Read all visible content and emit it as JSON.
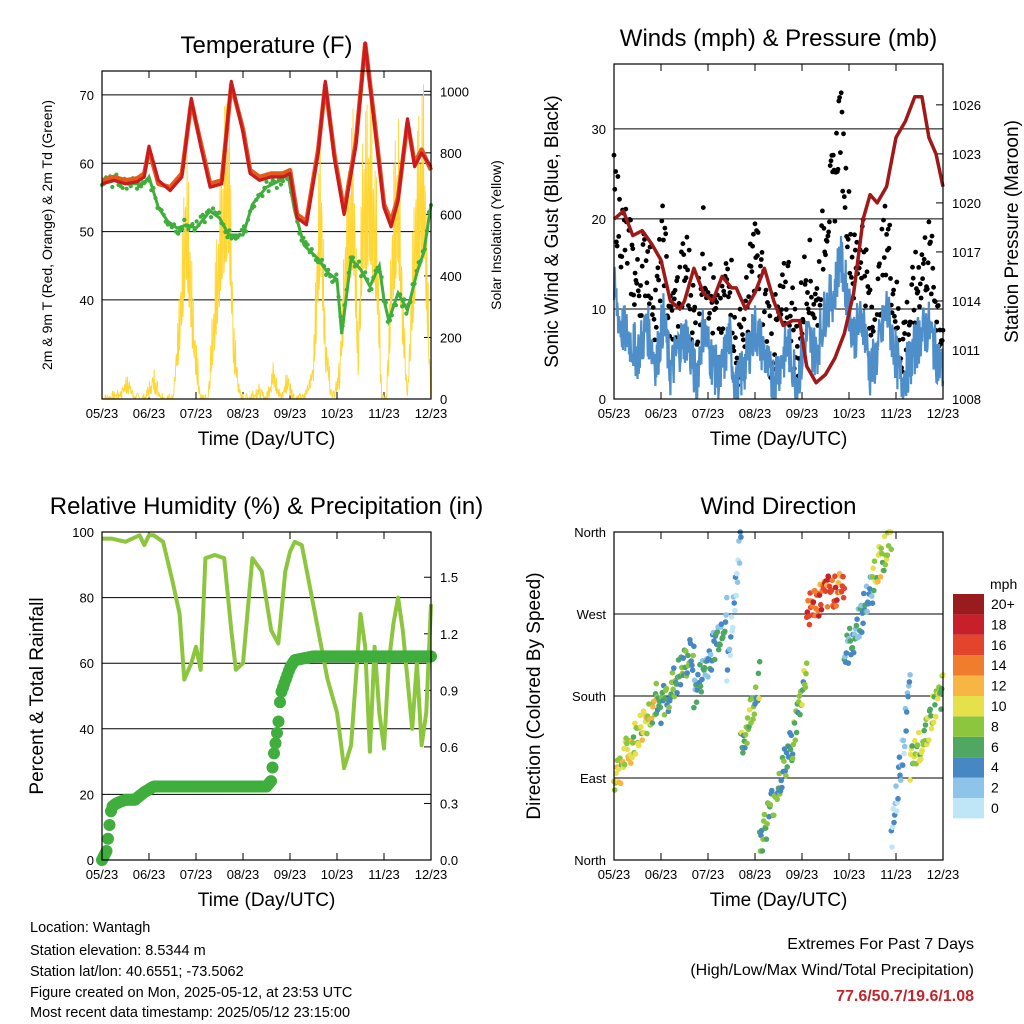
{
  "footer": {
    "location": "Location: Wantagh",
    "elevation": "Station elevation: 8.5344 m",
    "latlon": "Station lat/lon: 40.6551; -73.5062",
    "created": "Figure created on Mon, 2025-05-12, at 23:53 UTC",
    "recent": "Most recent data timestamp: 2025/05/12 23:15:00"
  },
  "extremes": {
    "title": "Extremes For Past 7 Days",
    "subtitle": "(High/Low/Max Wind/Total Precipitation)",
    "values": "77.6/50.7/19.6/1.08",
    "color": "#c0272d"
  },
  "chart_data": [
    {
      "type": "line",
      "title": "Temperature (F)",
      "xlabel": "Time (Day/UTC)",
      "ylabel": "2m & 9m T (Red, Orange) & 2m Td (Green)",
      "ylabel_right": "Solar Insolation (Yellow)",
      "x_ticks": [
        "05/23",
        "06/23",
        "07/23",
        "08/23",
        "09/23",
        "10/23",
        "11/23",
        "12/23"
      ],
      "xlim": [
        0,
        7
      ],
      "ylim": [
        25.5,
        73.5
      ],
      "y_ticks": [
        40,
        50,
        60,
        70
      ],
      "ylim_right": [
        0,
        1066
      ],
      "y_ticks_right": [
        0,
        200,
        400,
        600,
        800,
        1000
      ],
      "grid": "horizontal",
      "series": [
        {
          "color": "#e25a1c",
          "axis": "left",
          "x": [
            0,
            0.25,
            0.5,
            0.75,
            0.9,
            1.0,
            1.2,
            1.45,
            1.7,
            1.9,
            2.1,
            2.3,
            2.55,
            2.75,
            3.0,
            3.15,
            3.35,
            3.6,
            3.85,
            4.0,
            4.15,
            4.35,
            4.6,
            4.75,
            4.95,
            5.15,
            5.4,
            5.6,
            5.8,
            6.0,
            6.15,
            6.3,
            6.5,
            6.65,
            6.8,
            7.0
          ],
          "y": [
            57.5,
            58,
            57.5,
            57.8,
            58.5,
            62,
            57,
            56.5,
            58.5,
            69,
            63,
            57,
            57.5,
            71.5,
            65,
            59,
            58,
            58.5,
            58.5,
            59,
            52.5,
            51.5,
            62,
            71.5,
            61,
            53,
            63,
            77.5,
            66,
            54,
            51.5,
            55,
            66,
            60,
            62,
            59
          ]
        },
        {
          "color": "#cc1b1e",
          "axis": "left",
          "x": [
            0,
            0.25,
            0.5,
            0.75,
            0.9,
            1.0,
            1.2,
            1.45,
            1.7,
            1.9,
            2.1,
            2.3,
            2.55,
            2.75,
            3.0,
            3.15,
            3.35,
            3.6,
            3.85,
            4.0,
            4.15,
            4.35,
            4.6,
            4.75,
            4.95,
            5.15,
            5.4,
            5.6,
            5.8,
            6.0,
            6.15,
            6.3,
            6.5,
            6.65,
            6.8,
            7.0
          ],
          "y": [
            57,
            57.5,
            57,
            57.3,
            58,
            62.5,
            57.5,
            56,
            58,
            69.5,
            62.5,
            56.5,
            57,
            72,
            64.5,
            58.5,
            57.5,
            58,
            58,
            58.5,
            52,
            51,
            61.5,
            72,
            60.5,
            52.5,
            62.5,
            77.6,
            65.5,
            53.5,
            50.7,
            54.5,
            66.5,
            59.5,
            61.5,
            59.5
          ]
        },
        {
          "color": "#3fae3c",
          "axis": "left",
          "x": [
            0,
            0.3,
            0.6,
            0.9,
            1.0,
            1.2,
            1.4,
            1.6,
            1.8,
            2.0,
            2.3,
            2.5,
            2.7,
            3.0,
            3.2,
            3.5,
            3.8,
            3.95,
            4.1,
            4.3,
            4.6,
            4.8,
            5.0,
            5.1,
            5.3,
            5.5,
            5.7,
            5.9,
            6.0,
            6.1,
            6.3,
            6.5,
            6.7,
            6.85,
            7.0
          ],
          "y": [
            57,
            57.5,
            57,
            57,
            58,
            53.5,
            51.5,
            50.5,
            51,
            50.5,
            53,
            52,
            49.5,
            49.5,
            54,
            56.5,
            57.5,
            58.5,
            53,
            48,
            46,
            44,
            43,
            35,
            46,
            44.5,
            42,
            45,
            40,
            37,
            41,
            38.5,
            44,
            47,
            54
          ]
        },
        {
          "color": "#ffd633",
          "axis": "right",
          "x": [
            0,
            0.1,
            0.4,
            0.55,
            0.7,
            0.9,
            1.1,
            1.3,
            1.5,
            1.65,
            1.8,
            1.95,
            2.1,
            2.25,
            2.45,
            2.6,
            2.7,
            2.8,
            2.95,
            3.1,
            3.3,
            3.5,
            3.65,
            3.8,
            3.95,
            4.1,
            4.3,
            4.5,
            4.65,
            4.75,
            4.9,
            5.05,
            5.2,
            5.35,
            5.45,
            5.55,
            5.7,
            5.85,
            5.95,
            6.05,
            6.2,
            6.3,
            6.4,
            6.5,
            6.6,
            6.7,
            6.8,
            6.85,
            6.95,
            7.0
          ],
          "y": [
            0,
            0,
            30,
            80,
            0,
            0,
            90,
            0,
            0,
            350,
            870,
            300,
            0,
            0,
            560,
            960,
            1050,
            250,
            0,
            0,
            40,
            0,
            130,
            0,
            90,
            0,
            0,
            150,
            1000,
            250,
            0,
            110,
            700,
            1000,
            200,
            930,
            1010,
            700,
            0,
            0,
            780,
            1000,
            400,
            0,
            500,
            900,
            1000,
            1060,
            300,
            0
          ]
        }
      ]
    },
    {
      "type": "line",
      "title": "Winds (mph) & Pressure (mb)",
      "xlabel": "Time (Day/UTC)",
      "ylabel": "Sonic Wind & Gust (Blue, Black)",
      "ylabel_right": "Station Pressure (Maroon)",
      "x_ticks": [
        "05/23",
        "06/23",
        "07/23",
        "08/23",
        "09/23",
        "10/23",
        "11/23",
        "12/23"
      ],
      "xlim": [
        0,
        7
      ],
      "ylim": [
        0,
        37.2
      ],
      "y_ticks": [
        0,
        10,
        20,
        30
      ],
      "ylim_right": [
        1008,
        1028.5
      ],
      "y_ticks_right": [
        1008,
        1011,
        1014,
        1017,
        1020,
        1023,
        1026
      ],
      "grid": "horizontal",
      "series": [
        {
          "color": "#000000",
          "axis": "left",
          "x": [
            0,
            0.15,
            0.3,
            0.5,
            0.7,
            0.9,
            1.05,
            1.2,
            1.4,
            1.55,
            1.75,
            1.9,
            2.1,
            2.25,
            2.45,
            2.6,
            2.8,
            3.0,
            3.2,
            3.35,
            3.55,
            3.7,
            3.9,
            4.1,
            4.3,
            4.5,
            4.7,
            4.8,
            4.95,
            5.1,
            5.3,
            5.45,
            5.6,
            5.8,
            5.95,
            6.1,
            6.3,
            6.5,
            6.7,
            6.85,
            7.0
          ],
          "y": [
            23,
            19,
            17,
            12,
            16,
            10,
            18,
            8,
            12,
            15,
            7,
            17,
            10,
            6,
            16,
            4,
            9,
            17,
            11,
            6,
            9,
            13,
            5,
            15,
            10,
            20,
            24,
            32,
            22,
            14,
            18,
            8,
            10,
            19,
            12,
            6,
            9,
            14,
            16,
            11,
            7
          ]
        },
        {
          "color": "#4f8fc9",
          "axis": "left",
          "x": [
            0,
            0.15,
            0.3,
            0.5,
            0.7,
            0.9,
            1.05,
            1.2,
            1.4,
            1.55,
            1.75,
            1.9,
            2.1,
            2.25,
            2.45,
            2.6,
            2.8,
            3.0,
            3.2,
            3.35,
            3.55,
            3.7,
            3.9,
            4.1,
            4.3,
            4.5,
            4.7,
            4.8,
            4.95,
            5.1,
            5.3,
            5.45,
            5.6,
            5.8,
            5.95,
            6.1,
            6.3,
            6.5,
            6.7,
            6.85,
            7.0
          ],
          "y": [
            12,
            8,
            7,
            5,
            8,
            4,
            9,
            3,
            6,
            7,
            2,
            8,
            4,
            2,
            7,
            1,
            4,
            8,
            5,
            2,
            4,
            6,
            2,
            7,
            5,
            10,
            12,
            16,
            12,
            7,
            9,
            3,
            5,
            10,
            6,
            2,
            4,
            7,
            8,
            5,
            3
          ]
        },
        {
          "color": "#a01919",
          "axis": "right",
          "x": [
            0,
            0.2,
            0.4,
            0.6,
            0.8,
            1.0,
            1.2,
            1.4,
            1.5,
            1.7,
            1.9,
            2.1,
            2.3,
            2.5,
            2.6,
            2.8,
            3.0,
            3.2,
            3.4,
            3.6,
            3.8,
            3.95,
            4.1,
            4.3,
            4.5,
            4.7,
            4.9,
            5.1,
            5.3,
            5.45,
            5.6,
            5.8,
            6.0,
            6.2,
            6.4,
            6.55,
            6.7,
            6.85,
            7.0
          ],
          "y": [
            1019,
            1019.5,
            1018,
            1018.3,
            1017.5,
            1016.5,
            1014,
            1013.5,
            1014,
            1016,
            1014.5,
            1014,
            1015.5,
            1014.8,
            1014.8,
            1013.5,
            1014.5,
            1016,
            1014,
            1012.5,
            1012.8,
            1012.8,
            1010,
            1009,
            1009.5,
            1010.5,
            1012,
            1014.5,
            1019,
            1020.5,
            1020,
            1021,
            1024,
            1025,
            1026.5,
            1026.5,
            1024,
            1023,
            1021
          ]
        }
      ]
    },
    {
      "type": "line",
      "title": "Relative Humidity (%) & Precipitation (in)",
      "xlabel": "Time (Day/UTC)",
      "ylabel": "Percent & Total Rainfall",
      "x_ticks": [
        "05/23",
        "06/23",
        "07/23",
        "08/23",
        "09/23",
        "10/23",
        "11/23",
        "12/23"
      ],
      "xlim": [
        0,
        7
      ],
      "ylim": [
        0,
        100
      ],
      "y_ticks": [
        0,
        20,
        40,
        60,
        80,
        100
      ],
      "ylim_right": [
        0,
        1.74
      ],
      "y_ticks_right": [
        0.0,
        0.3,
        0.6,
        0.9,
        1.2,
        1.5
      ],
      "grid": "horizontal",
      "series": [
        {
          "color": "#8cc63f",
          "axis": "left",
          "x": [
            0,
            0.2,
            0.5,
            0.8,
            0.9,
            1.0,
            1.1,
            1.3,
            1.5,
            1.65,
            1.75,
            1.9,
            2.0,
            2.1,
            2.2,
            2.4,
            2.6,
            2.75,
            2.85,
            3.0,
            3.2,
            3.4,
            3.6,
            3.75,
            3.9,
            4.0,
            4.1,
            4.25,
            4.4,
            4.6,
            4.8,
            5.0,
            5.15,
            5.3,
            5.4,
            5.5,
            5.6,
            5.7,
            5.8,
            5.9,
            6.0,
            6.1,
            6.2,
            6.3,
            6.4,
            6.5,
            6.6,
            6.7,
            6.8,
            6.9,
            7.0
          ],
          "y": [
            98,
            98,
            97,
            99,
            96,
            99,
            99,
            97,
            85,
            75,
            55,
            60,
            65,
            58,
            92,
            93,
            92,
            70,
            58,
            60,
            92,
            88,
            70,
            66,
            88,
            94,
            97,
            96,
            85,
            70,
            55,
            45,
            28,
            35,
            55,
            75,
            65,
            33,
            65,
            45,
            34,
            60,
            72,
            80,
            70,
            55,
            40,
            60,
            35,
            45,
            78
          ]
        },
        {
          "color": "#3fae3c",
          "axis": "right",
          "x": [
            0,
            0.1,
            0.2,
            0.3,
            0.5,
            0.7,
            0.9,
            1.1,
            1.5,
            2.0,
            3.0,
            3.5,
            3.6,
            3.65,
            3.75,
            3.8,
            3.9,
            4.0,
            4.1,
            4.5,
            5.0,
            5.5,
            6.0,
            6.5,
            7.0
          ],
          "y": [
            0,
            0.05,
            0.28,
            0.3,
            0.32,
            0.32,
            0.36,
            0.39,
            0.39,
            0.39,
            0.39,
            0.39,
            0.42,
            0.55,
            0.72,
            0.88,
            0.95,
            1.02,
            1.06,
            1.08,
            1.08,
            1.08,
            1.08,
            1.08,
            1.08
          ]
        }
      ]
    },
    {
      "type": "scatter",
      "title": "Wind Direction",
      "xlabel": "Time (Day/UTC)",
      "ylabel": "Direction (Colored By Speed)",
      "x_ticks": [
        "05/23",
        "06/23",
        "07/23",
        "08/23",
        "09/23",
        "10/23",
        "11/23",
        "12/23"
      ],
      "xlim": [
        0,
        7
      ],
      "y_ticks": [
        "North",
        "East",
        "South",
        "West",
        "North"
      ],
      "ylim": [
        0,
        360
      ],
      "grid": "horizontal",
      "legend_title": "mph",
      "legend_labels": [
        "0",
        "2",
        "4",
        "6",
        "8",
        "10",
        "12",
        "14",
        "16",
        "18",
        "20+"
      ],
      "legend_colors": [
        "#bfe6f7",
        "#8ec4ea",
        "#4787c4",
        "#4ea862",
        "#8cc63f",
        "#e6e04a",
        "#f7b544",
        "#f07d2d",
        "#e4442b",
        "#c7202a",
        "#9a1b1e"
      ],
      "segments": [
        {
          "x0": 0.0,
          "x1": 0.9,
          "y0": 90,
          "y1": 175,
          "speed": 9
        },
        {
          "x0": 0.9,
          "x1": 1.7,
          "y0": 160,
          "y1": 230,
          "speed": 6
        },
        {
          "x0": 1.7,
          "x1": 2.4,
          "y0": 180,
          "y1": 270,
          "speed": 4
        },
        {
          "x0": 2.4,
          "x1": 2.7,
          "y0": 200,
          "y1": 360,
          "speed": 2
        },
        {
          "x0": 2.7,
          "x1": 3.1,
          "y0": 120,
          "y1": 200,
          "speed": 7
        },
        {
          "x0": 3.1,
          "x1": 3.8,
          "y0": 20,
          "y1": 130,
          "speed": 6
        },
        {
          "x0": 3.8,
          "x1": 4.1,
          "y0": 130,
          "y1": 210,
          "speed": 7
        },
        {
          "x0": 4.1,
          "x1": 4.9,
          "y0": 275,
          "y1": 305,
          "speed": 15
        },
        {
          "x0": 4.9,
          "x1": 5.5,
          "y0": 220,
          "y1": 300,
          "speed": 4
        },
        {
          "x0": 5.5,
          "x1": 5.9,
          "y0": 310,
          "y1": 355,
          "speed": 9
        },
        {
          "x0": 5.9,
          "x1": 6.3,
          "y0": 20,
          "y1": 190,
          "speed": 3
        },
        {
          "x0": 6.3,
          "x1": 7.0,
          "y0": 100,
          "y1": 190,
          "speed": 8
        }
      ]
    }
  ]
}
